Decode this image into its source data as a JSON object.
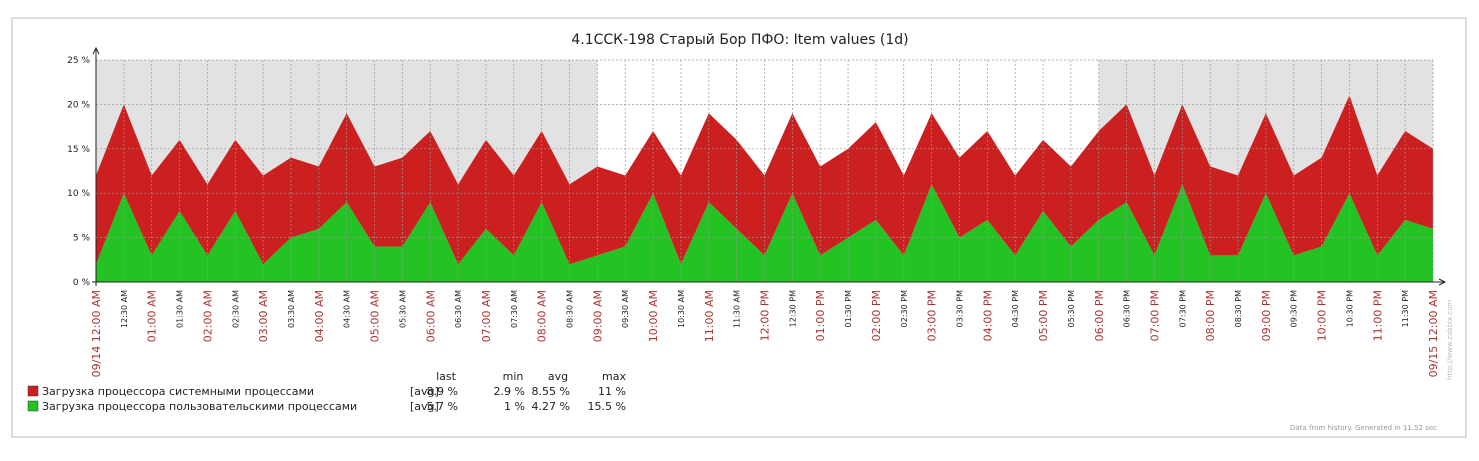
{
  "chart_data": {
    "type": "stacked-area",
    "title": "4.1ССК-198 Старый Бор ПФО: Item values (1d)",
    "categories": [
      "09/14 12:00 AM",
      "12:30 AM",
      "01:00 AM",
      "01:30 AM",
      "02:00 AM",
      "02:30 AM",
      "03:00 AM",
      "03:30 AM",
      "04:00 AM",
      "04:30 AM",
      "05:00 AM",
      "05:30 AM",
      "06:00 AM",
      "06:30 AM",
      "07:00 AM",
      "07:30 AM",
      "08:00 AM",
      "08:30 AM",
      "09:00 AM",
      "09:30 AM",
      "10:00 AM",
      "10:30 AM",
      "11:00 AM",
      "11:30 AM",
      "12:00 PM",
      "12:30 PM",
      "01:00 PM",
      "01:30 PM",
      "02:00 PM",
      "02:30 PM",
      "03:00 PM",
      "03:30 PM",
      "04:00 PM",
      "04:30 PM",
      "05:00 PM",
      "05:30 PM",
      "06:00 PM",
      "06:30 PM",
      "07:00 PM",
      "07:30 PM",
      "08:00 PM",
      "08:30 PM",
      "09:00 PM",
      "09:30 PM",
      "10:00 PM",
      "10:30 PM",
      "11:00 PM",
      "11:30 PM",
      "09/15 12:00 AM"
    ],
    "series": [
      {
        "name": "Загрузка процессора системными процессами",
        "color": "#cc1f1f",
        "values": [
          10,
          10,
          9,
          8,
          8,
          8,
          10,
          9,
          7,
          10,
          9,
          10,
          8,
          9,
          10,
          9,
          8,
          9,
          10,
          8,
          7,
          10,
          10,
          10,
          9,
          9,
          10,
          10,
          11,
          9,
          8,
          9,
          10,
          9,
          8,
          9,
          10,
          11,
          9,
          9,
          10,
          9,
          9,
          9,
          10,
          11,
          9,
          10,
          9
        ]
      },
      {
        "name": "Загрузка процессора пользовательскими процессами",
        "color": "#22c322",
        "values": [
          2,
          10,
          3,
          8,
          3,
          8,
          2,
          5,
          6,
          9,
          4,
          4,
          9,
          2,
          6,
          3,
          9,
          2,
          3,
          4,
          10,
          2,
          9,
          6,
          3,
          10,
          3,
          5,
          7,
          3,
          11,
          5,
          7,
          3,
          8,
          4,
          7,
          9,
          3,
          11,
          3,
          3,
          10,
          3,
          4,
          10,
          3,
          7,
          6
        ]
      }
    ],
    "ylim": [
      0,
      25
    ],
    "yticks": [
      {
        "value": 0,
        "label": "0 %"
      },
      {
        "value": 5,
        "label": "5 %"
      },
      {
        "value": 10,
        "label": "10 %"
      },
      {
        "value": 15,
        "label": "15 %"
      },
      {
        "value": 20,
        "label": "20 %"
      },
      {
        "value": 25,
        "label": "25 %"
      }
    ],
    "grid": true,
    "legend": {
      "columns": [
        "last",
        "min",
        "avg",
        "max"
      ],
      "rows": [
        {
          "function": "[avg]",
          "cells": [
            "8.9 %",
            "2.9 %",
            "8.55 %",
            "11 %"
          ]
        },
        {
          "function": "[avg]",
          "cells": [
            "5.7 %",
            "1 %",
            "4.27 %",
            "15.5 %"
          ]
        }
      ]
    },
    "watermark": "http://www.zabbix.com",
    "footer": "Data from history. Generated in 11.52 sec"
  }
}
